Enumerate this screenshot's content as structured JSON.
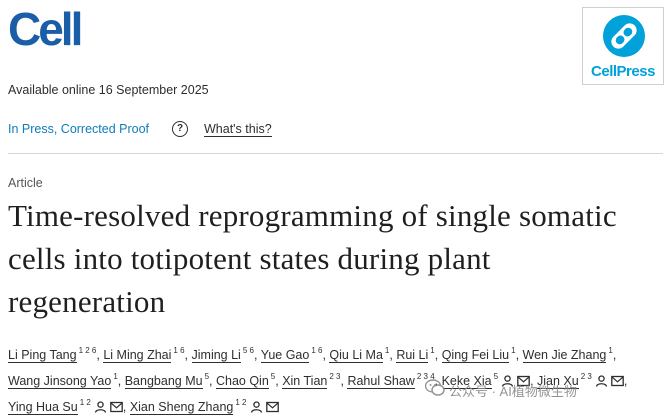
{
  "journal": {
    "logo_text": "Cell",
    "publisher_logo_text": "CellPress"
  },
  "availability": "Available online 16 September 2025",
  "status": {
    "label": "In Press, Corrected Proof",
    "help_label": "What's this?"
  },
  "article": {
    "type": "Article",
    "title": "Time-resolved reprogramming of single somatic cells into totipotent states during plant regeneration"
  },
  "authors": [
    {
      "name": "Li Ping Tang",
      "aff": "1 2 6",
      "icons": []
    },
    {
      "name": "Li Ming Zhai",
      "aff": "1 6",
      "icons": []
    },
    {
      "name": "Jiming Li",
      "aff": "5 6",
      "icons": []
    },
    {
      "name": "Yue Gao",
      "aff": "1 6",
      "icons": []
    },
    {
      "name": "Qiu Li Ma",
      "aff": "1",
      "icons": []
    },
    {
      "name": "Rui Li",
      "aff": "1",
      "icons": []
    },
    {
      "name": "Qing Fei Liu",
      "aff": "1",
      "icons": []
    },
    {
      "name": "Wen Jie Zhang",
      "aff": "1",
      "icons": []
    },
    {
      "name": "Wang Jinsong Yao",
      "aff": "1",
      "icons": []
    },
    {
      "name": "Bangbang Mu",
      "aff": "5",
      "icons": []
    },
    {
      "name": "Chao Qin",
      "aff": "5",
      "icons": []
    },
    {
      "name": "Xin Tian",
      "aff": "2 3",
      "icons": []
    },
    {
      "name": "Rahul Shaw",
      "aff": "2 3 4",
      "icons": []
    },
    {
      "name": "Keke Xia",
      "aff": "5",
      "icons": [
        "person-icon",
        "envelope-icon"
      ]
    },
    {
      "name": "Jian Xu",
      "aff": "2 3",
      "icons": [
        "person-icon",
        "envelope-icon"
      ]
    },
    {
      "name": "Ying Hua Su",
      "aff": "1 2",
      "icons": [
        "person-icon",
        "envelope-icon"
      ]
    },
    {
      "name": "Xian Sheng Zhang",
      "aff": "1 2",
      "icons": [
        "person-icon",
        "envelope-icon"
      ]
    }
  ],
  "watermark": {
    "text": "公众号 · AI植物微生物"
  },
  "colors": {
    "cell_blue": "#1a5ea8",
    "cellpress_cyan": "#00a2d9",
    "link_blue": "#0c7dbb"
  }
}
